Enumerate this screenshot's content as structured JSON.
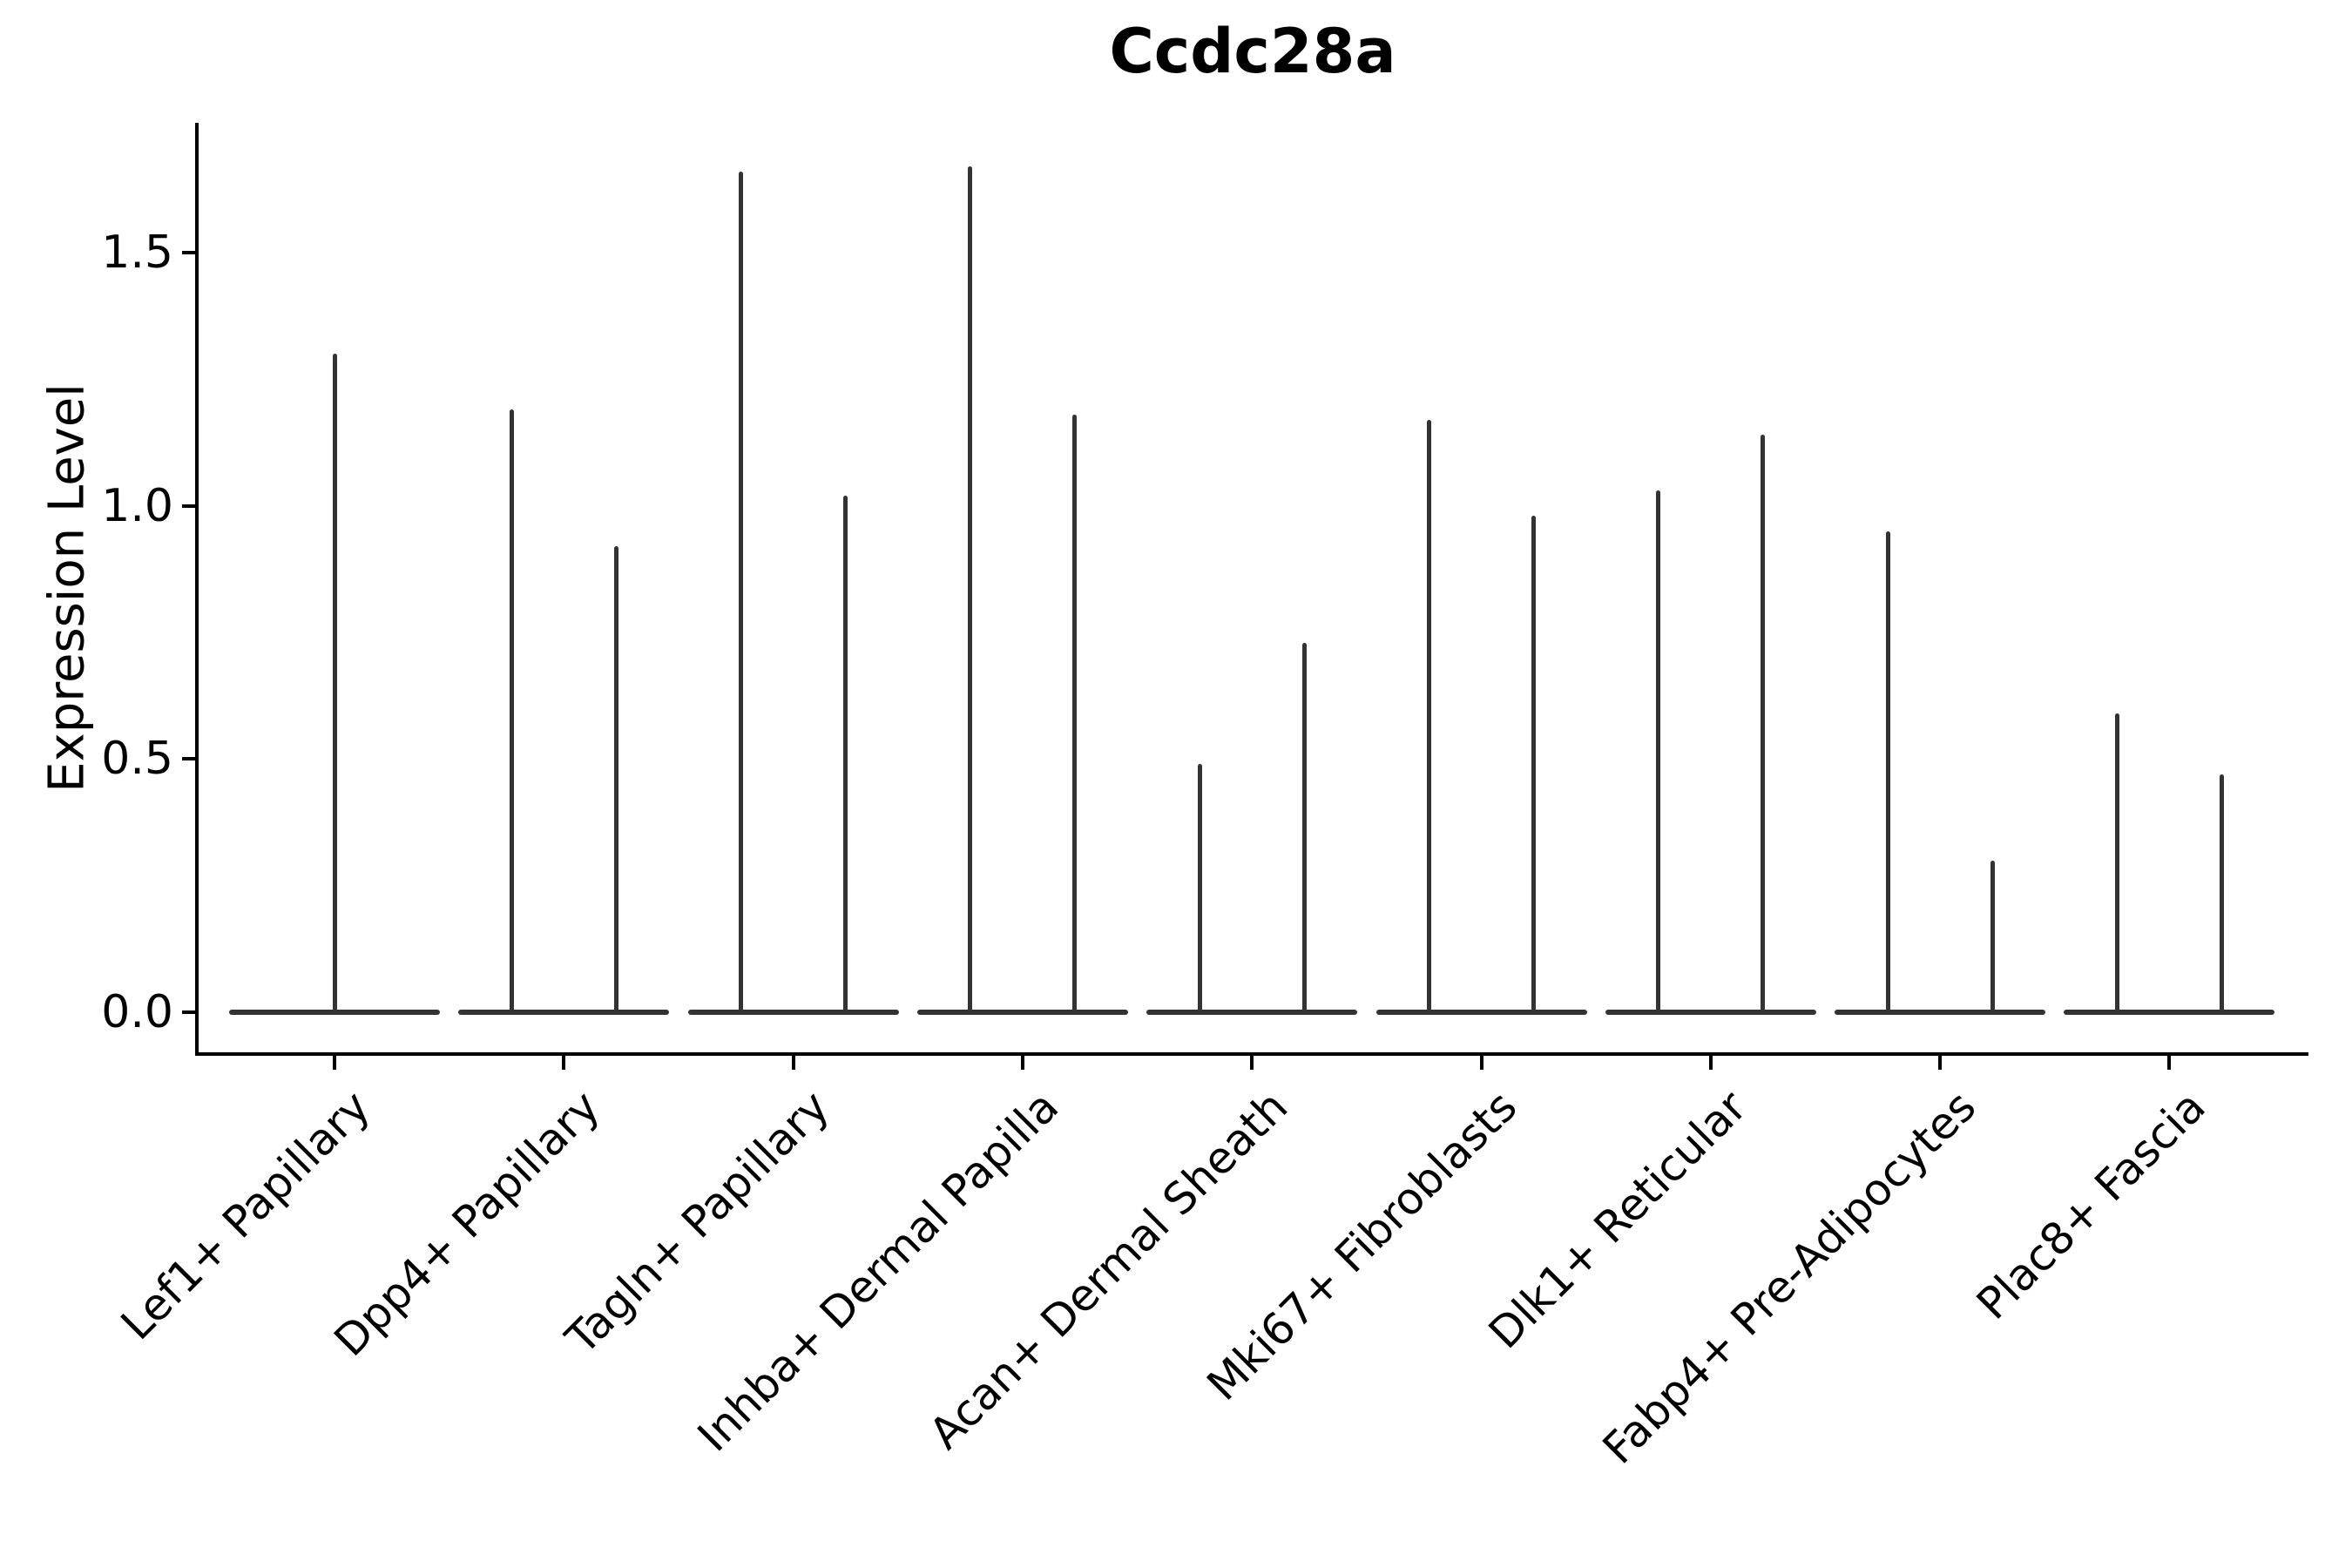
{
  "title": "Ccdc28a",
  "colors": {
    "violin_line": "#333333",
    "axis": "#000000",
    "text": "#000000",
    "background": "#ffffff"
  },
  "chart_data": {
    "type": "violin",
    "title": "Ccdc28a",
    "xlabel": "",
    "ylabel": "Expression Level",
    "ylim": [
      -0.08,
      1.76
    ],
    "grid": false,
    "legend": null,
    "yticks": [
      {
        "value": 0.0,
        "label": "0.0"
      },
      {
        "value": 0.5,
        "label": "0.5"
      },
      {
        "value": 1.0,
        "label": "1.0"
      },
      {
        "value": 1.5,
        "label": "1.5"
      }
    ],
    "categories": [
      "Lef1+ Papillary",
      "Dpp4+ Papillary",
      "Tagln+ Papillary",
      "Inhba+ Dermal Papilla",
      "Acan+ Dermal Sheath",
      "Mki67+ Fibroblasts",
      "Dlk1+ Reticular",
      "Fabp4+ Pre-Adipocytes",
      "Plac8+ Fascia"
    ],
    "groups": [
      {
        "label": "Lef1+ Papillary",
        "violins": [
          {
            "min": 0,
            "max": 1.3
          }
        ]
      },
      {
        "label": "Dpp4+ Papillary",
        "violins": [
          {
            "min": 0,
            "max": 1.19
          },
          {
            "min": 0,
            "max": 0.92
          }
        ]
      },
      {
        "label": "Tagln+ Papillary",
        "violins": [
          {
            "min": 0,
            "max": 1.66
          },
          {
            "min": 0,
            "max": 1.02
          }
        ]
      },
      {
        "label": "Inhba+ Dermal Papilla",
        "violins": [
          {
            "min": 0,
            "max": 1.67
          },
          {
            "min": 0,
            "max": 1.18
          }
        ]
      },
      {
        "label": "Acan+ Dermal Sheath",
        "violins": [
          {
            "min": 0,
            "max": 0.49
          },
          {
            "min": 0,
            "max": 0.73
          }
        ]
      },
      {
        "label": "Mki67+ Fibroblasts",
        "violins": [
          {
            "min": 0,
            "max": 1.17
          },
          {
            "min": 0,
            "max": 0.98
          }
        ]
      },
      {
        "label": "Dlk1+ Reticular",
        "violins": [
          {
            "min": 0,
            "max": 1.03
          },
          {
            "min": 0,
            "max": 1.14
          }
        ]
      },
      {
        "label": "Fabp4+ Pre-Adipocytes",
        "violins": [
          {
            "min": 0,
            "max": 0.95
          },
          {
            "min": 0,
            "max": 0.3
          }
        ]
      },
      {
        "label": "Plac8+ Fascia",
        "violins": [
          {
            "min": 0,
            "max": 0.59
          },
          {
            "min": 0,
            "max": 0.47
          }
        ]
      }
    ],
    "shape_note": "zero-inflated expression distributions: wide flat violin base at 0 with a thin vertical spike reaching the max value"
  }
}
